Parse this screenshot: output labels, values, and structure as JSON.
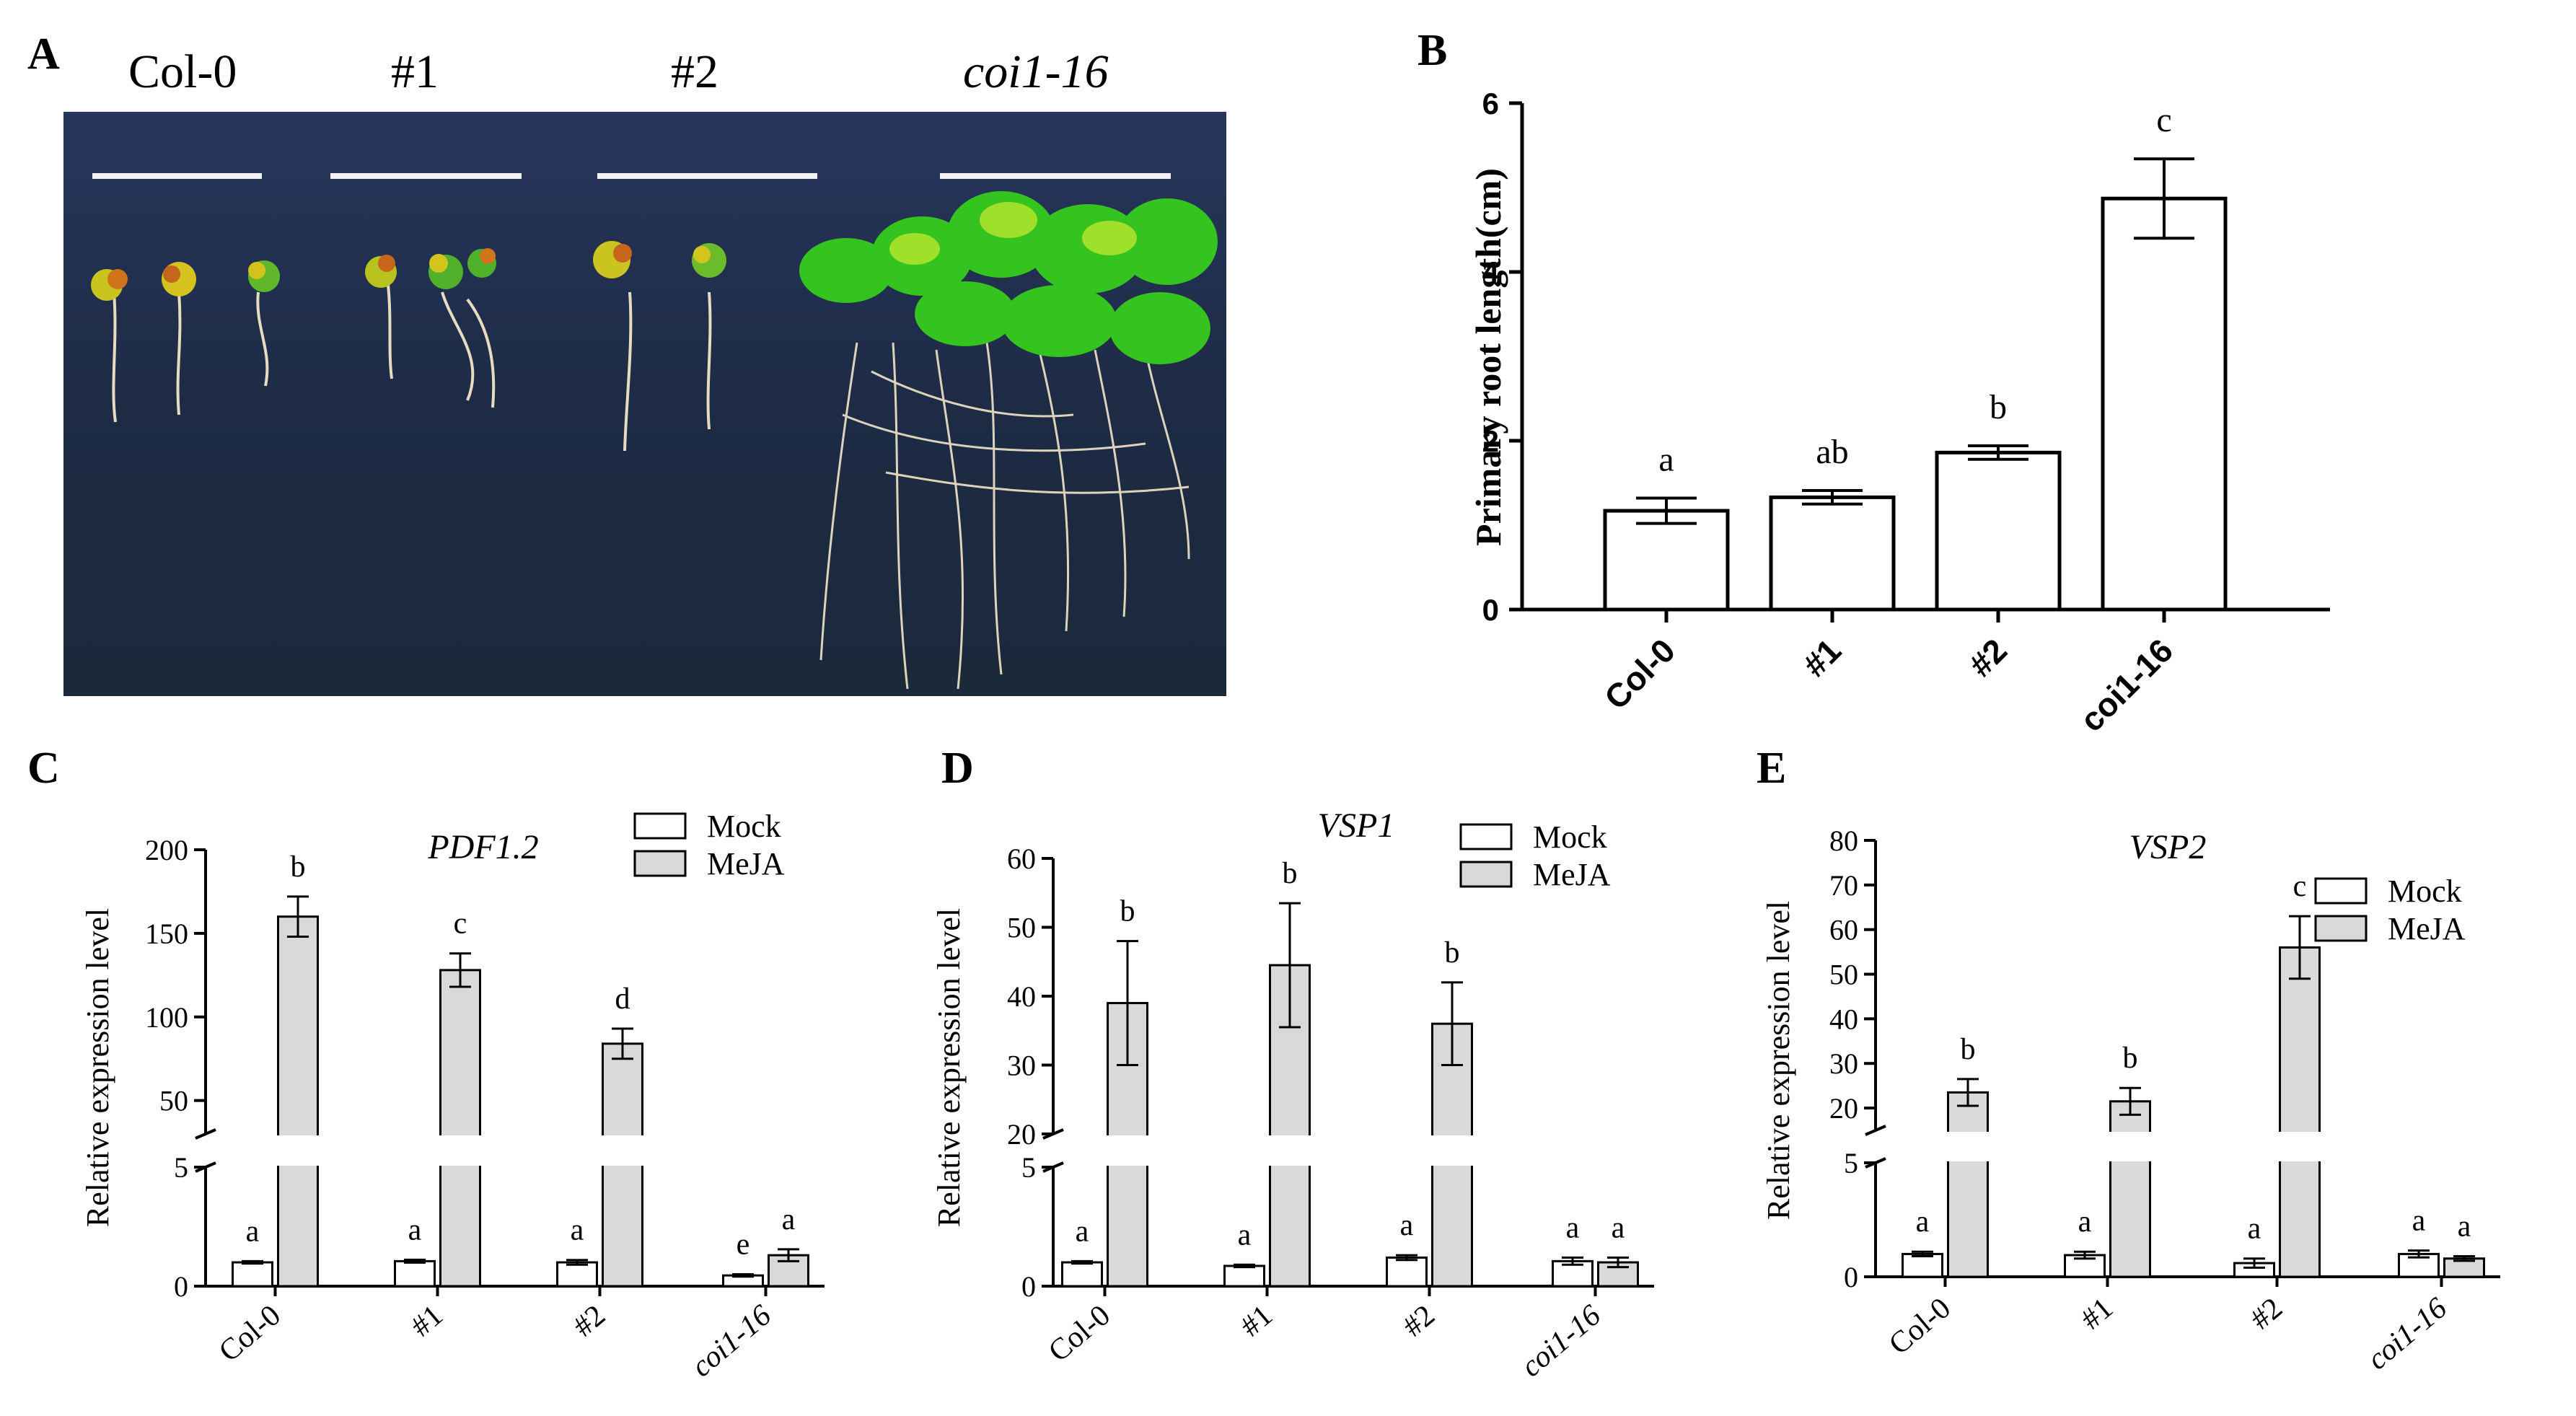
{
  "panels": {
    "A": {
      "letter": "A",
      "labels": [
        "Col-0",
        "#1",
        "#2",
        "coi1-16"
      ]
    },
    "B": {
      "letter": "B"
    },
    "C": {
      "letter": "C"
    },
    "D": {
      "letter": "D"
    },
    "E": {
      "letter": "E"
    }
  },
  "chart_data": [
    {
      "id": "B",
      "type": "bar",
      "categories": [
        "Col-0",
        "#1",
        "#2",
        "coi1-16"
      ],
      "values": [
        1.17,
        1.33,
        1.86,
        4.87
      ],
      "errors": [
        0.15,
        0.08,
        0.08,
        0.47
      ],
      "letters": [
        "a",
        "ab",
        "b",
        "c"
      ],
      "ylabel": "Primary root length(cm)",
      "ylim": [
        0,
        6
      ],
      "yticks": [
        0,
        2,
        4,
        6
      ],
      "grid": false
    },
    {
      "id": "C",
      "type": "bar",
      "title": "PDF1.2",
      "ylabel": "Relative expression level",
      "categories": [
        "Col-0",
        "#1",
        "#2",
        "coi1-16"
      ],
      "legend": "top-right",
      "axis_break": true,
      "lower_range": [
        0,
        5
      ],
      "upper_range": [
        30,
        200
      ],
      "lower_ticks": [
        0,
        5
      ],
      "upper_ticks": [
        50,
        100,
        150,
        200
      ],
      "series": [
        {
          "name": "Mock",
          "values": [
            1.0,
            1.05,
            1.0,
            0.45
          ],
          "errors": [
            0.05,
            0.06,
            0.1,
            0.05
          ],
          "letters": [
            "a",
            "a",
            "a",
            "e"
          ]
        },
        {
          "name": "MeJA",
          "values": [
            160,
            128,
            84,
            1.3
          ],
          "errors": [
            12,
            10,
            9,
            0.25
          ],
          "letters": [
            "b",
            "c",
            "d",
            "a"
          ]
        }
      ]
    },
    {
      "id": "D",
      "type": "bar",
      "title": "VSP1",
      "ylabel": "Relative expression level",
      "categories": [
        "Col-0",
        "#1",
        "#2",
        "coi1-16"
      ],
      "legend": "top-right",
      "axis_break": true,
      "lower_range": [
        0,
        5
      ],
      "upper_range": [
        20,
        60
      ],
      "lower_ticks": [
        0,
        5
      ],
      "upper_ticks": [
        20,
        30,
        40,
        50,
        60
      ],
      "series": [
        {
          "name": "Mock",
          "values": [
            1.0,
            0.85,
            1.2,
            1.05
          ],
          "errors": [
            0.05,
            0.05,
            0.1,
            0.15
          ],
          "letters": [
            "a",
            "a",
            "a",
            "a"
          ]
        },
        {
          "name": "MeJA",
          "values": [
            39,
            44.5,
            36,
            1.0
          ],
          "errors": [
            9,
            9,
            6,
            0.2
          ],
          "letters": [
            "b",
            "b",
            "b",
            "a"
          ]
        }
      ]
    },
    {
      "id": "E",
      "type": "bar",
      "title": "VSP2",
      "ylabel": "Relative expression level",
      "categories": [
        "Col-0",
        "#1",
        "#2",
        "coi1-16"
      ],
      "legend": "top-right",
      "axis_break": true,
      "lower_range": [
        0,
        5
      ],
      "upper_range": [
        15,
        80
      ],
      "lower_ticks": [
        0,
        5
      ],
      "upper_ticks": [
        20,
        30,
        40,
        50,
        60,
        70,
        80
      ],
      "series": [
        {
          "name": "Mock",
          "values": [
            1.0,
            0.95,
            0.6,
            1.0
          ],
          "errors": [
            0.1,
            0.15,
            0.2,
            0.15
          ],
          "letters": [
            "a",
            "a",
            "a",
            "a"
          ]
        },
        {
          "name": "MeJA",
          "values": [
            23.5,
            21.5,
            56,
            0.8
          ],
          "errors": [
            3,
            3,
            7,
            0.1
          ],
          "letters": [
            "b",
            "b",
            "c",
            "a"
          ]
        }
      ]
    }
  ]
}
